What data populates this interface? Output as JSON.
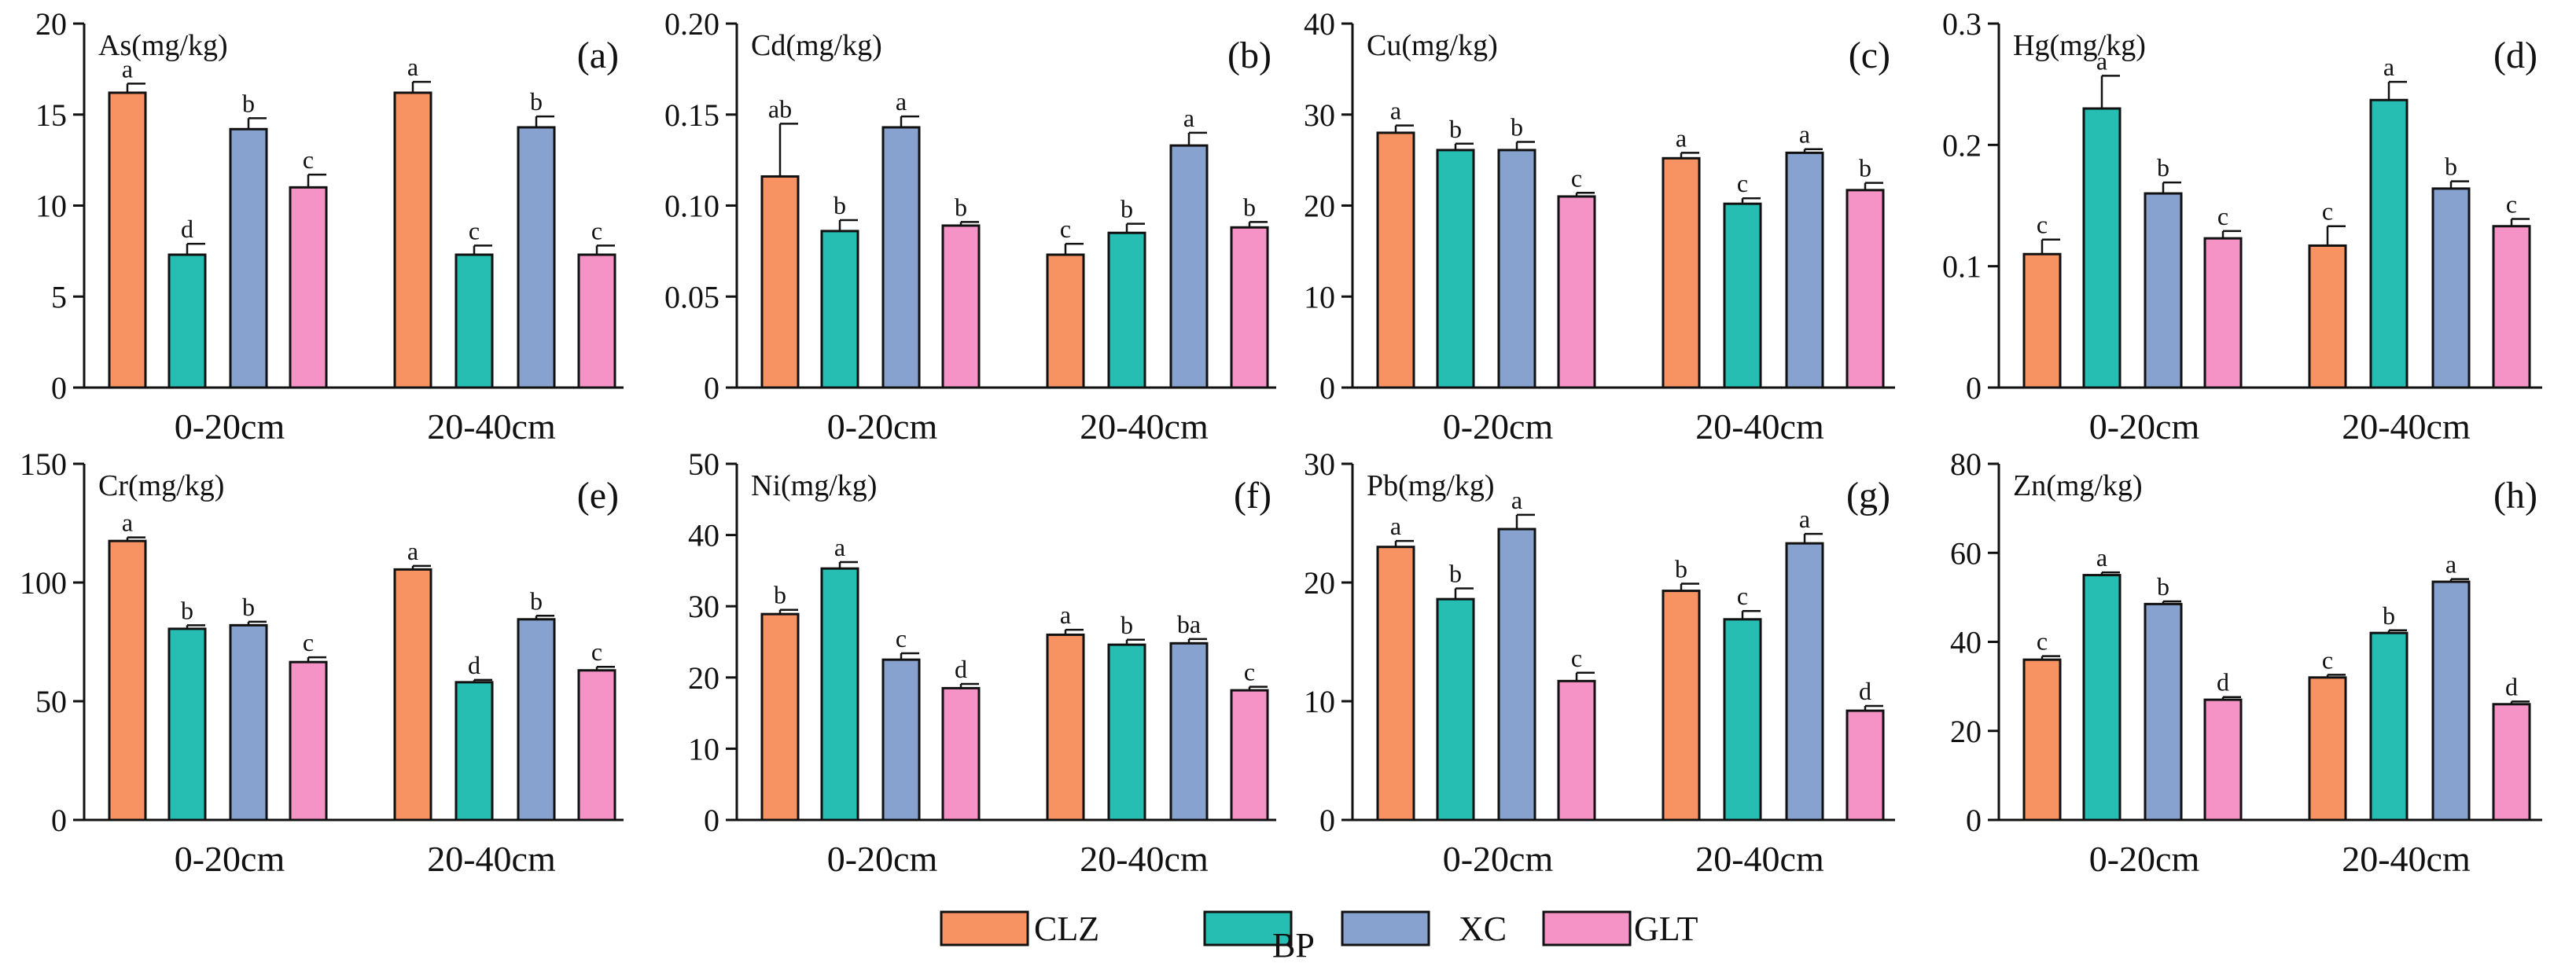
{
  "colors": {
    "CLZ": "#F79262",
    "BP": "#26BEB2",
    "XC": "#87A2CF",
    "GLT": "#F592C6",
    "axis": "#111111",
    "bar_outline": "#111111"
  },
  "legend": {
    "entries": [
      "CLZ",
      "BP",
      "XC",
      "GLT"
    ]
  },
  "chart_data": [
    {
      "type": "bar",
      "panel": "(a)",
      "title": "As(mg/kg)",
      "categories": [
        "0-20cm",
        "20-40cm"
      ],
      "ylim": [
        0,
        20
      ],
      "yticks": [
        0,
        5,
        10,
        15,
        20
      ],
      "tick_labels": [
        "0",
        "5",
        "10",
        "15",
        "20"
      ],
      "series": [
        {
          "name": "CLZ",
          "values": [
            16.2,
            16.2
          ],
          "errors": [
            0.5,
            0.6
          ],
          "letters": [
            "a",
            "a"
          ]
        },
        {
          "name": "BP",
          "values": [
            7.3,
            7.3
          ],
          "errors": [
            0.6,
            0.5
          ],
          "letters": [
            "d",
            "c"
          ]
        },
        {
          "name": "XC",
          "values": [
            14.2,
            14.3
          ],
          "errors": [
            0.6,
            0.6
          ],
          "letters": [
            "b",
            "b"
          ]
        },
        {
          "name": "GLT",
          "values": [
            11.0,
            7.3
          ],
          "errors": [
            0.7,
            0.5
          ],
          "letters": [
            "c",
            "c"
          ]
        }
      ]
    },
    {
      "type": "bar",
      "panel": "(b)",
      "title": "Cd(mg/kg)",
      "categories": [
        "0-20cm",
        "20-40cm"
      ],
      "ylim": [
        0,
        0.2
      ],
      "yticks": [
        0,
        0.05,
        0.1,
        0.15,
        0.2
      ],
      "tick_labels": [
        "0",
        "0.05",
        "0.10",
        "0.15",
        "0.20"
      ],
      "series": [
        {
          "name": "CLZ",
          "values": [
            0.116,
            0.073
          ],
          "errors": [
            0.029,
            0.006
          ],
          "letters": [
            "ab",
            "c"
          ]
        },
        {
          "name": "BP",
          "values": [
            0.086,
            0.085
          ],
          "errors": [
            0.006,
            0.005
          ],
          "letters": [
            "b",
            "b"
          ]
        },
        {
          "name": "XC",
          "values": [
            0.143,
            0.133
          ],
          "errors": [
            0.006,
            0.007
          ],
          "letters": [
            "a",
            "a"
          ]
        },
        {
          "name": "GLT",
          "values": [
            0.089,
            0.088
          ],
          "errors": [
            0.002,
            0.003
          ],
          "letters": [
            "b",
            "b"
          ]
        }
      ]
    },
    {
      "type": "bar",
      "panel": "(c)",
      "title": "Cu(mg/kg)",
      "categories": [
        "0-20cm",
        "20-40cm"
      ],
      "ylim": [
        0,
        40
      ],
      "yticks": [
        0,
        10,
        20,
        30,
        40
      ],
      "tick_labels": [
        "0",
        "10",
        "20",
        "30",
        "40"
      ],
      "series": [
        {
          "name": "CLZ",
          "values": [
            28.0,
            25.2
          ],
          "errors": [
            0.8,
            0.6
          ],
          "letters": [
            "a",
            "a"
          ]
        },
        {
          "name": "BP",
          "values": [
            26.1,
            20.2
          ],
          "errors": [
            0.7,
            0.6
          ],
          "letters": [
            "b",
            "c"
          ]
        },
        {
          "name": "XC",
          "values": [
            26.1,
            25.8
          ],
          "errors": [
            0.9,
            0.4
          ],
          "letters": [
            "b",
            "a"
          ]
        },
        {
          "name": "GLT",
          "values": [
            21.0,
            21.7
          ],
          "errors": [
            0.4,
            0.8
          ],
          "letters": [
            "c",
            "b"
          ]
        }
      ]
    },
    {
      "type": "bar",
      "panel": "(d)",
      "title": "Hg(mg/kg)",
      "categories": [
        "0-20cm",
        "20-40cm"
      ],
      "ylim": [
        0,
        0.3
      ],
      "yticks": [
        0,
        0.1,
        0.2,
        0.3
      ],
      "tick_labels": [
        "0",
        "0.1",
        "0.2",
        "0.3"
      ],
      "series": [
        {
          "name": "CLZ",
          "values": [
            0.11,
            0.117
          ],
          "errors": [
            0.012,
            0.016
          ],
          "letters": [
            "c",
            "c"
          ]
        },
        {
          "name": "BP",
          "values": [
            0.23,
            0.237
          ],
          "errors": [
            0.027,
            0.015
          ],
          "letters": [
            "a",
            "a"
          ]
        },
        {
          "name": "XC",
          "values": [
            0.16,
            0.164
          ],
          "errors": [
            0.009,
            0.006
          ],
          "letters": [
            "b",
            "b"
          ]
        },
        {
          "name": "GLT",
          "values": [
            0.123,
            0.133
          ],
          "errors": [
            0.006,
            0.006
          ],
          "letters": [
            "c",
            "c"
          ]
        }
      ]
    },
    {
      "type": "bar",
      "panel": "(e)",
      "title": "Cr(mg/kg)",
      "categories": [
        "0-20cm",
        "20-40cm"
      ],
      "ylim": [
        0,
        150
      ],
      "yticks": [
        0,
        50,
        100,
        150
      ],
      "tick_labels": [
        "0",
        "50",
        "100",
        "150"
      ],
      "series": [
        {
          "name": "CLZ",
          "values": [
            117.5,
            105.5
          ],
          "errors": [
            1.5,
            1.5
          ],
          "letters": [
            "a",
            "a"
          ]
        },
        {
          "name": "BP",
          "values": [
            80.5,
            58.0
          ],
          "errors": [
            1.5,
            1.0
          ],
          "letters": [
            "b",
            "d"
          ]
        },
        {
          "name": "XC",
          "values": [
            82.0,
            84.5
          ],
          "errors": [
            1.5,
            1.5
          ],
          "letters": [
            "b",
            "b"
          ]
        },
        {
          "name": "GLT",
          "values": [
            66.5,
            63.0
          ],
          "errors": [
            2.0,
            1.5
          ],
          "letters": [
            "c",
            "c"
          ]
        }
      ]
    },
    {
      "type": "bar",
      "panel": "(f)",
      "title": "Ni(mg/kg)",
      "categories": [
        "0-20cm",
        "20-40cm"
      ],
      "ylim": [
        0,
        50
      ],
      "yticks": [
        0,
        10,
        20,
        30,
        40,
        50
      ],
      "tick_labels": [
        "0",
        "10",
        "20",
        "30",
        "40",
        "50"
      ],
      "series": [
        {
          "name": "CLZ",
          "values": [
            28.9,
            26.0
          ],
          "errors": [
            0.6,
            0.7
          ],
          "letters": [
            "b",
            "a"
          ]
        },
        {
          "name": "BP",
          "values": [
            35.3,
            24.6
          ],
          "errors": [
            0.9,
            0.7
          ],
          "letters": [
            "a",
            "b"
          ]
        },
        {
          "name": "XC",
          "values": [
            22.5,
            24.8
          ],
          "errors": [
            0.9,
            0.6
          ],
          "letters": [
            "c",
            "ba"
          ]
        },
        {
          "name": "GLT",
          "values": [
            18.5,
            18.2
          ],
          "errors": [
            0.6,
            0.5
          ],
          "letters": [
            "d",
            "c"
          ]
        }
      ]
    },
    {
      "type": "bar",
      "panel": "(g)",
      "title": "Pb(mg/kg)",
      "categories": [
        "0-20cm",
        "20-40cm"
      ],
      "ylim": [
        0,
        30
      ],
      "yticks": [
        0,
        10,
        20,
        30
      ],
      "tick_labels": [
        "0",
        "10",
        "20",
        "30"
      ],
      "series": [
        {
          "name": "CLZ",
          "values": [
            23.0,
            19.3
          ],
          "errors": [
            0.5,
            0.6
          ],
          "letters": [
            "a",
            "b"
          ]
        },
        {
          "name": "BP",
          "values": [
            18.6,
            16.9
          ],
          "errors": [
            0.9,
            0.7
          ],
          "letters": [
            "b",
            "c"
          ]
        },
        {
          "name": "XC",
          "values": [
            24.5,
            23.3
          ],
          "errors": [
            1.2,
            0.8
          ],
          "letters": [
            "a",
            "a"
          ]
        },
        {
          "name": "GLT",
          "values": [
            11.7,
            9.2
          ],
          "errors": [
            0.7,
            0.4
          ],
          "letters": [
            "c",
            "d"
          ]
        }
      ]
    },
    {
      "type": "bar",
      "panel": "(h)",
      "title": "Zn(mg/kg)",
      "categories": [
        "0-20cm",
        "20-40cm"
      ],
      "ylim": [
        0,
        80
      ],
      "yticks": [
        0,
        20,
        40,
        60,
        80
      ],
      "tick_labels": [
        "0",
        "20",
        "40",
        "60",
        "80"
      ],
      "series": [
        {
          "name": "CLZ",
          "values": [
            36.0,
            32.0
          ],
          "errors": [
            0.8,
            0.6
          ],
          "letters": [
            "c",
            "c"
          ]
        },
        {
          "name": "BP",
          "values": [
            55.0,
            42.0
          ],
          "errors": [
            0.6,
            0.6
          ],
          "letters": [
            "a",
            "b"
          ]
        },
        {
          "name": "XC",
          "values": [
            48.5,
            53.5
          ],
          "errors": [
            0.6,
            0.6
          ],
          "letters": [
            "b",
            "a"
          ]
        },
        {
          "name": "GLT",
          "values": [
            27.0,
            26.0
          ],
          "errors": [
            0.6,
            0.6
          ],
          "letters": [
            "d",
            "d"
          ]
        }
      ]
    }
  ]
}
